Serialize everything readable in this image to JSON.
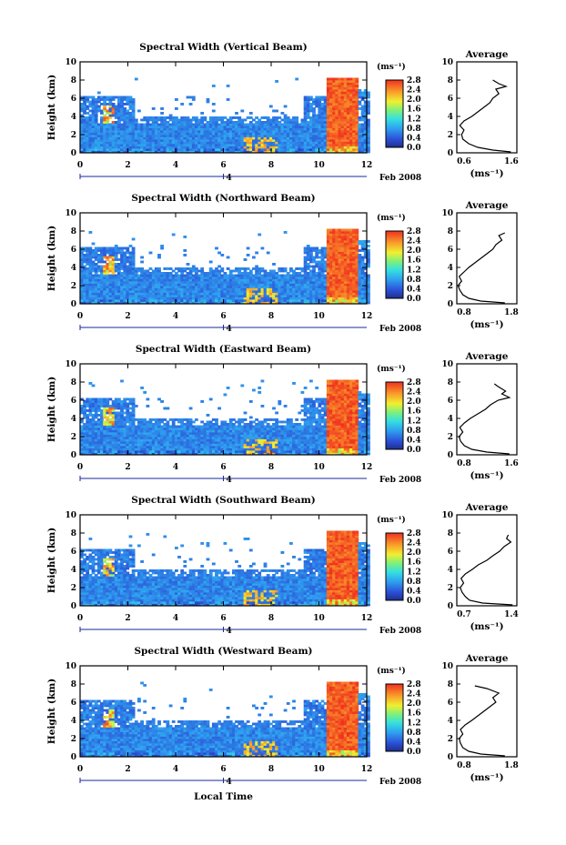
{
  "colorbar": {
    "unit": "(ms⁻¹)",
    "ticks": [
      "0.0",
      "0.4",
      "0.8",
      "1.2",
      "1.6",
      "2.0",
      "2.4",
      "2.8"
    ]
  },
  "xlabel": "Local Time",
  "date_label": "Feb 2008",
  "day_label": "4",
  "chart_data": [
    {
      "type": "heatmap",
      "title": "Spectral Width (Vertical Beam)",
      "ylabel": "Height (km)",
      "xlim": [
        0,
        12
      ],
      "ylim": [
        0,
        10
      ],
      "xticks": [
        "0",
        "2",
        "4",
        "6",
        "8",
        "10",
        "12"
      ],
      "yticks": [
        "0",
        "2",
        "4",
        "6",
        "8",
        "10"
      ],
      "profile": {
        "title": "Average",
        "xlabel": "(ms⁻¹)",
        "xlim": [
          0.6,
          1.6
        ],
        "xticks": [
          "0.6",
          "1.6"
        ],
        "ylim": [
          0,
          10
        ],
        "yticks": [
          "0",
          "2",
          "4",
          "6",
          "8",
          "10"
        ],
        "points": [
          [
            1.5,
            0.1
          ],
          [
            1.2,
            0.3
          ],
          [
            0.95,
            0.6
          ],
          [
            0.8,
            1.0
          ],
          [
            0.7,
            1.5
          ],
          [
            0.68,
            2.0
          ],
          [
            0.72,
            2.5
          ],
          [
            0.65,
            3.0
          ],
          [
            0.72,
            3.5
          ],
          [
            0.85,
            4.0
          ],
          [
            0.95,
            4.5
          ],
          [
            1.05,
            5.0
          ],
          [
            1.15,
            5.5
          ],
          [
            1.2,
            6.0
          ],
          [
            1.3,
            6.5
          ],
          [
            1.25,
            7.0
          ],
          [
            1.42,
            7.3
          ],
          [
            1.3,
            7.6
          ],
          [
            1.2,
            8.0
          ]
        ]
      }
    },
    {
      "type": "heatmap",
      "title": "Spectral Width (Northward Beam)",
      "ylabel": "Height (km)",
      "xlim": [
        0,
        12
      ],
      "ylim": [
        0,
        10
      ],
      "xticks": [
        "0",
        "2",
        "4",
        "6",
        "8",
        "10",
        "12"
      ],
      "yticks": [
        "0",
        "2",
        "4",
        "6",
        "8",
        "10"
      ],
      "profile": {
        "title": "Average",
        "xlabel": "(ms⁻¹)",
        "xlim": [
          0.8,
          1.8
        ],
        "xticks": [
          "0.8",
          "1.8"
        ],
        "ylim": [
          0,
          10
        ],
        "yticks": [
          "0",
          "2",
          "4",
          "6",
          "8",
          "10"
        ],
        "points": [
          [
            1.6,
            0.1
          ],
          [
            1.2,
            0.3
          ],
          [
            1.0,
            0.6
          ],
          [
            0.9,
            1.0
          ],
          [
            0.85,
            1.5
          ],
          [
            0.82,
            2.0
          ],
          [
            0.88,
            2.5
          ],
          [
            0.84,
            3.0
          ],
          [
            0.92,
            3.5
          ],
          [
            1.0,
            4.0
          ],
          [
            1.1,
            4.5
          ],
          [
            1.2,
            5.0
          ],
          [
            1.3,
            5.5
          ],
          [
            1.4,
            6.0
          ],
          [
            1.45,
            6.5
          ],
          [
            1.55,
            7.0
          ],
          [
            1.5,
            7.5
          ],
          [
            1.6,
            7.8
          ]
        ]
      }
    },
    {
      "type": "heatmap",
      "title": "Spectral Width (Eastward Beam)",
      "ylabel": "Height (km)",
      "xlim": [
        0,
        12
      ],
      "ylim": [
        0,
        10
      ],
      "xticks": [
        "0",
        "2",
        "4",
        "6",
        "8",
        "10",
        "12"
      ],
      "yticks": [
        "0",
        "2",
        "4",
        "6",
        "8",
        "10"
      ],
      "profile": {
        "title": "Average",
        "xlabel": "(ms⁻¹)",
        "xlim": [
          0.8,
          1.6
        ],
        "xticks": [
          "0.8",
          "1.6"
        ],
        "ylim": [
          0,
          10
        ],
        "yticks": [
          "0",
          "2",
          "4",
          "6",
          "8",
          "10"
        ],
        "points": [
          [
            1.5,
            0.1
          ],
          [
            1.2,
            0.3
          ],
          [
            1.0,
            0.6
          ],
          [
            0.9,
            1.0
          ],
          [
            0.85,
            1.5
          ],
          [
            0.83,
            2.0
          ],
          [
            0.88,
            2.5
          ],
          [
            0.84,
            3.0
          ],
          [
            0.9,
            3.5
          ],
          [
            0.98,
            4.0
          ],
          [
            1.08,
            4.5
          ],
          [
            1.18,
            5.0
          ],
          [
            1.25,
            5.5
          ],
          [
            1.35,
            6.0
          ],
          [
            1.5,
            6.3
          ],
          [
            1.4,
            6.7
          ],
          [
            1.45,
            7.0
          ],
          [
            1.35,
            7.5
          ],
          [
            1.3,
            7.8
          ]
        ]
      }
    },
    {
      "type": "heatmap",
      "title": "Spectral Width (Southward Beam)",
      "ylabel": "Height (km)",
      "xlim": [
        0,
        12
      ],
      "ylim": [
        0,
        10
      ],
      "xticks": [
        "0",
        "2",
        "4",
        "6",
        "8",
        "10",
        "12"
      ],
      "yticks": [
        "0",
        "2",
        "4",
        "6",
        "8",
        "10"
      ],
      "profile": {
        "title": "Average",
        "xlabel": "(ms⁻¹)",
        "xlim": [
          0.7,
          1.4
        ],
        "xticks": [
          "0.7",
          "1.4"
        ],
        "ylim": [
          0,
          10
        ],
        "yticks": [
          "0",
          "2",
          "4",
          "6",
          "8",
          "10"
        ],
        "points": [
          [
            1.35,
            0.1
          ],
          [
            1.0,
            0.3
          ],
          [
            0.85,
            0.6
          ],
          [
            0.8,
            1.0
          ],
          [
            0.76,
            1.5
          ],
          [
            0.74,
            2.0
          ],
          [
            0.78,
            2.5
          ],
          [
            0.75,
            3.0
          ],
          [
            0.8,
            3.5
          ],
          [
            0.88,
            4.0
          ],
          [
            0.95,
            4.5
          ],
          [
            1.05,
            5.0
          ],
          [
            1.12,
            5.5
          ],
          [
            1.2,
            6.0
          ],
          [
            1.25,
            6.5
          ],
          [
            1.33,
            7.0
          ],
          [
            1.28,
            7.4
          ],
          [
            1.3,
            7.8
          ]
        ]
      }
    },
    {
      "type": "heatmap",
      "title": "Spectral Width (Westward Beam)",
      "ylabel": "Height (km)",
      "xlim": [
        0,
        12
      ],
      "ylim": [
        0,
        10
      ],
      "xticks": [
        "0",
        "2",
        "4",
        "6",
        "8",
        "10",
        "12"
      ],
      "yticks": [
        "0",
        "2",
        "4",
        "6",
        "8",
        "10"
      ],
      "profile": {
        "title": "Average",
        "xlabel": "(ms⁻¹)",
        "xlim": [
          0.8,
          1.8
        ],
        "xticks": [
          "0.8",
          "1.8"
        ],
        "ylim": [
          0,
          10
        ],
        "yticks": [
          "0",
          "2",
          "4",
          "6",
          "8",
          "10"
        ],
        "points": [
          [
            1.6,
            0.1
          ],
          [
            1.2,
            0.3
          ],
          [
            1.0,
            0.6
          ],
          [
            0.9,
            1.0
          ],
          [
            0.86,
            1.5
          ],
          [
            0.84,
            2.0
          ],
          [
            0.9,
            2.5
          ],
          [
            0.86,
            3.0
          ],
          [
            0.94,
            3.5
          ],
          [
            1.05,
            4.0
          ],
          [
            1.15,
            4.5
          ],
          [
            1.25,
            5.0
          ],
          [
            1.35,
            5.5
          ],
          [
            1.45,
            6.0
          ],
          [
            1.4,
            6.5
          ],
          [
            1.5,
            7.0
          ],
          [
            1.3,
            7.5
          ],
          [
            1.1,
            7.8
          ]
        ]
      }
    }
  ]
}
